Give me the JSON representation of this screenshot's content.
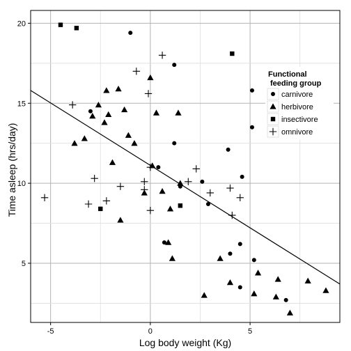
{
  "chart_data": {
    "type": "scatter",
    "xlabel": "Log body weight (Kg)",
    "ylabel": "Time asleep (hrs/day)",
    "xlim": [
      -6.0,
      9.5
    ],
    "ylim": [
      1.3,
      20.8
    ],
    "xticks": [
      -5,
      0,
      5
    ],
    "yticks": [
      5,
      10,
      15,
      20
    ],
    "xtick_labels": [
      "-5",
      "0",
      "5"
    ],
    "ytick_labels": [
      "5",
      "10",
      "15",
      "20"
    ],
    "grid": true,
    "legend": {
      "title_line1": "Functional",
      "title_line2": "feeding group",
      "placement": "right",
      "entries": [
        "carnivore",
        "herbivore",
        "insectivore",
        "omnivore"
      ]
    },
    "regression_line": {
      "x": [
        -6.0,
        9.5
      ],
      "y": [
        15.8,
        3.7
      ]
    },
    "series": [
      {
        "name": "carnivore",
        "marker": "circle",
        "points": [
          [
            -1.0,
            19.4
          ],
          [
            1.2,
            17.4
          ],
          [
            5.1,
            15.8
          ],
          [
            1.2,
            12.5
          ],
          [
            0.4,
            11.0
          ],
          [
            1.5,
            9.8
          ],
          [
            2.6,
            10.1
          ],
          [
            2.9,
            8.7
          ],
          [
            3.9,
            12.1
          ],
          [
            4.6,
            10.4
          ],
          [
            5.1,
            13.5
          ],
          [
            -3.0,
            14.5
          ],
          [
            0.7,
            6.3
          ],
          [
            4.5,
            6.2
          ],
          [
            4.0,
            5.6
          ],
          [
            5.2,
            5.2
          ],
          [
            4.5,
            3.5
          ],
          [
            6.8,
            2.7
          ]
        ]
      },
      {
        "name": "herbivore",
        "marker": "triangle",
        "points": [
          [
            -1.6,
            15.9
          ],
          [
            -2.2,
            15.8
          ],
          [
            0.0,
            16.6
          ],
          [
            -2.6,
            14.9
          ],
          [
            -1.3,
            14.6
          ],
          [
            0.3,
            14.4
          ],
          [
            1.4,
            14.4
          ],
          [
            -2.1,
            14.3
          ],
          [
            -2.9,
            14.2
          ],
          [
            -2.3,
            13.8
          ],
          [
            -1.1,
            13.0
          ],
          [
            -3.3,
            12.8
          ],
          [
            -3.8,
            12.5
          ],
          [
            -0.8,
            12.5
          ],
          [
            -1.9,
            11.3
          ],
          [
            0.1,
            11.1
          ],
          [
            -0.3,
            9.4
          ],
          [
            0.6,
            9.5
          ],
          [
            1.5,
            10.0
          ],
          [
            1.0,
            8.4
          ],
          [
            -1.5,
            7.7
          ],
          [
            0.9,
            6.3
          ],
          [
            1.1,
            5.3
          ],
          [
            3.5,
            5.3
          ],
          [
            4.0,
            3.8
          ],
          [
            5.4,
            4.4
          ],
          [
            2.7,
            3.0
          ],
          [
            5.2,
            3.1
          ],
          [
            6.4,
            4.0
          ],
          [
            6.3,
            2.9
          ],
          [
            7.0,
            1.9
          ],
          [
            7.9,
            3.9
          ],
          [
            8.8,
            3.3
          ]
        ]
      },
      {
        "name": "insectivore",
        "marker": "square",
        "points": [
          [
            -4.5,
            19.9
          ],
          [
            -3.7,
            19.7
          ],
          [
            4.1,
            18.1
          ],
          [
            -2.5,
            8.4
          ],
          [
            1.5,
            8.6
          ]
        ]
      },
      {
        "name": "omnivore",
        "marker": "plus",
        "points": [
          [
            0.6,
            18.0
          ],
          [
            -0.7,
            17.0
          ],
          [
            -0.1,
            15.6
          ],
          [
            -3.9,
            14.9
          ],
          [
            0.0,
            11.0
          ],
          [
            2.3,
            10.9
          ],
          [
            -2.8,
            10.3
          ],
          [
            -0.3,
            10.1
          ],
          [
            1.9,
            10.1
          ],
          [
            -1.5,
            9.8
          ],
          [
            3.0,
            9.4
          ],
          [
            4.0,
            9.7
          ],
          [
            -0.3,
            9.6
          ],
          [
            4.5,
            9.1
          ],
          [
            -5.3,
            9.1
          ],
          [
            -2.2,
            8.9
          ],
          [
            -3.1,
            8.7
          ],
          [
            0.0,
            8.3
          ],
          [
            4.1,
            8.0
          ]
        ]
      }
    ]
  }
}
